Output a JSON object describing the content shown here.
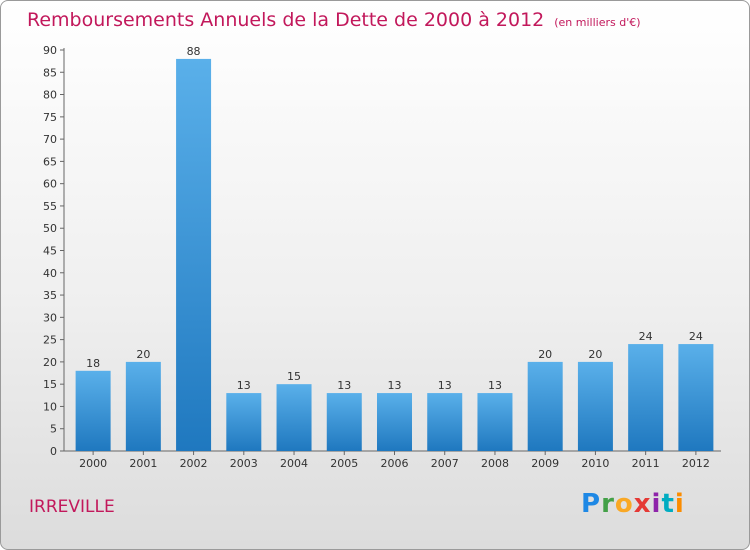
{
  "title": "Remboursements Annuels de la Dette de 2000 à 2012",
  "unit_note": "(en milliers d'€)",
  "commune": "IRREVILLE",
  "logo_text": "Proxiti",
  "colors": {
    "title": "#c2185b",
    "bar_top": "#5ab0ea",
    "bar_bottom": "#1f78bf"
  },
  "chart_data": {
    "type": "bar",
    "title": "Remboursements Annuels de la Dette de 2000 à 2012",
    "xlabel": "",
    "ylabel": "",
    "ylim": [
      0,
      90
    ],
    "yticks": [
      0,
      5,
      10,
      15,
      20,
      25,
      30,
      35,
      40,
      45,
      50,
      55,
      60,
      65,
      70,
      75,
      80,
      85,
      90
    ],
    "grid": false,
    "legend": "none",
    "categories": [
      "2000",
      "2001",
      "2002",
      "2003",
      "2004",
      "2005",
      "2006",
      "2007",
      "2008",
      "2009",
      "2010",
      "2011",
      "2012"
    ],
    "values": [
      18,
      20,
      88,
      13,
      15,
      13,
      13,
      13,
      13,
      20,
      20,
      24,
      24
    ]
  }
}
